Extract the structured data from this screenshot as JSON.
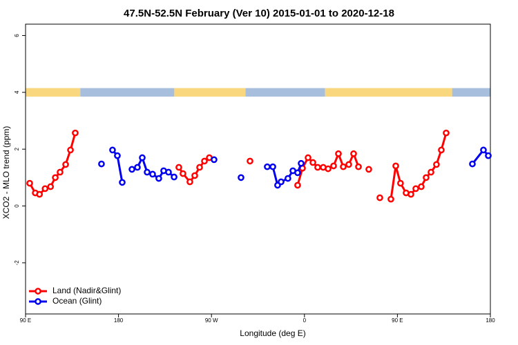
{
  "chart_data": {
    "type": "line",
    "title": "47.5N-52.5N February (Ver 10)   2015-01-01 to 2020-12-18",
    "x_label": "Longitude (deg E)",
    "y_label": "XCO2 - MLO trend (ppm)",
    "xlim": [
      90,
      540
    ],
    "xticks": [
      {
        "value": 90,
        "label": "90 E"
      },
      {
        "value": 180,
        "label": "180"
      },
      {
        "value": 270,
        "label": "90 W"
      },
      {
        "value": 360,
        "label": "0"
      },
      {
        "value": 450,
        "label": "90 E"
      },
      {
        "value": 540,
        "label": "180"
      }
    ],
    "ylim": [
      -3.8,
      6.4
    ],
    "yticks": [
      -2,
      0,
      2,
      4,
      6
    ],
    "legend": "bottom-left",
    "land_mask": {
      "ylim": [
        3.85,
        4.15
      ],
      "segments": [
        {
          "from": 90,
          "to": 143,
          "color": "#f9d77e"
        },
        {
          "from": 143,
          "to": 234,
          "color": "#a7bedd"
        },
        {
          "from": 234,
          "to": 303,
          "color": "#f9d77e"
        },
        {
          "from": 303,
          "to": 380,
          "color": "#a7bedd"
        },
        {
          "from": 380,
          "to": 503,
          "color": "#f9d77e"
        },
        {
          "from": 503,
          "to": 540,
          "color": "#a7bedd"
        }
      ]
    },
    "series": [
      {
        "name": "Land (Nadir&Glint)",
        "color": "#ff0000",
        "x": [
          94,
          99.4,
          103.5,
          108.9,
          114.2,
          118.8,
          123.4,
          128.8,
          133.5,
          138.1,
          null,
          238.4,
          242.4,
          249.1,
          253.8,
          258.5,
          263.2,
          267.9,
          null,
          307.3,
          null,
          353.4,
          358.1,
          363.5,
          368.2,
          372.8,
          378.2,
          382.9,
          388.2,
          392.9,
          397.6,
          402.9,
          407.6,
          412.3,
          null,
          422.3,
          null,
          433,
          null,
          443.7,
          448.4,
          453,
          458.4,
          463.1,
          467.8,
          473.1,
          477.8,
          482.5,
          487.8,
          492.5,
          497.2
        ],
        "values": [
          0.8,
          0.46,
          0.41,
          0.61,
          0.68,
          1.0,
          1.19,
          1.46,
          1.97,
          2.57,
          null,
          1.36,
          1.14,
          0.85,
          1.07,
          1.36,
          1.58,
          1.7,
          null,
          1.58,
          null,
          0.73,
          1.33,
          1.7,
          1.53,
          1.36,
          1.36,
          1.31,
          1.41,
          1.84,
          1.38,
          1.46,
          1.84,
          1.38,
          null,
          1.29,
          null,
          0.29,
          null,
          0.24,
          1.41,
          0.8,
          0.46,
          0.41,
          0.61,
          0.68,
          1.0,
          1.19,
          1.46,
          1.97,
          2.57
        ]
      },
      {
        "name": "Ocean (Glint)",
        "color": "#0000ee",
        "x": [
          163.5,
          null,
          174.2,
          178.9,
          183.6,
          null,
          193,
          198.3,
          203,
          207.7,
          213,
          219,
          223.7,
          228.4,
          233.8,
          null,
          272.5,
          null,
          298.6,
          null,
          324,
          329.4,
          334,
          337.4,
          344,
          348.8,
          353.4,
          356.8,
          null,
          522.6,
          533.3,
          538
        ],
        "values": [
          1.48,
          null,
          1.97,
          1.77,
          0.83,
          null,
          1.29,
          1.36,
          1.7,
          1.19,
          1.12,
          0.97,
          1.24,
          1.19,
          1.02,
          null,
          1.63,
          null,
          1.0,
          null,
          1.38,
          1.38,
          0.73,
          0.85,
          0.97,
          1.24,
          1.17,
          1.5,
          null,
          1.48,
          1.97,
          1.77
        ]
      }
    ]
  }
}
